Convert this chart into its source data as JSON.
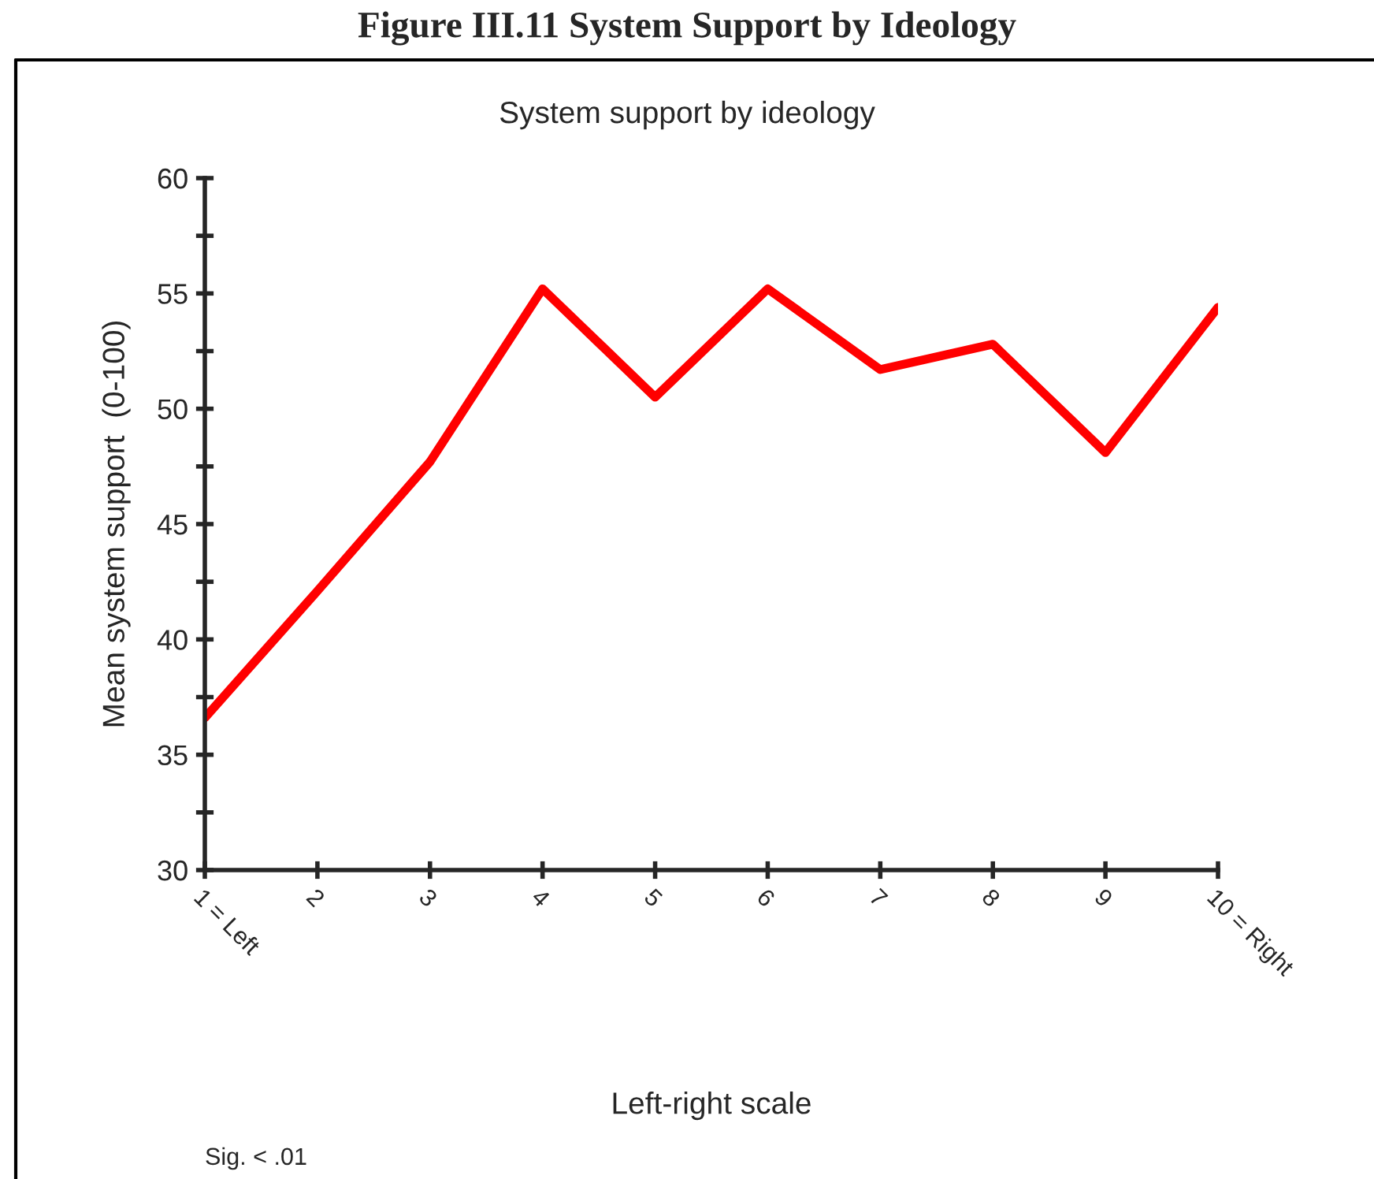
{
  "chart_data": {
    "type": "line",
    "title": "Figure III.11 System Support by Ideology",
    "subtitle": "System support by ideology",
    "xlabel": "Left-right scale",
    "ylabel": "Mean system support  (0-100)",
    "categories": [
      "1 = Left",
      "2",
      "3",
      "4",
      "5",
      "6",
      "7",
      "8",
      "9",
      "10 = Right"
    ],
    "series": [
      {
        "color": "#ff0000",
        "values": [
          36.6,
          42.1,
          47.7,
          55.2,
          50.5,
          55.2,
          51.7,
          52.8,
          48.1,
          54.4
        ]
      }
    ],
    "ylim": [
      30,
      60
    ],
    "yticks": [
      30,
      {
        "value": 32.5,
        "label": null
      },
      35,
      {
        "value": 37.5,
        "label": null
      },
      40,
      {
        "value": 42.5,
        "label": null
      },
      45,
      {
        "value": 47.5,
        "label": null
      },
      50,
      {
        "value": 52.5,
        "label": null
      },
      55,
      {
        "value": 57.5,
        "label": null
      },
      60
    ],
    "grid": false,
    "legend": false,
    "marker": "none",
    "line_style": "solid",
    "annotations": [
      "Sig. < .01"
    ]
  }
}
